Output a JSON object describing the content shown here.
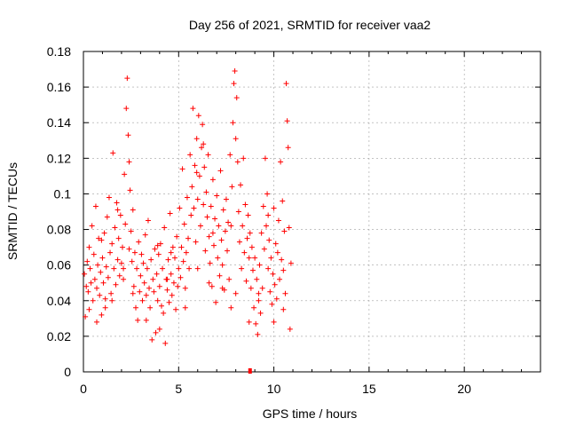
{
  "chart_data": {
    "type": "scatter",
    "title": "Day 256 of 2021, SRMTID for receiver vaa2",
    "xlabel": "GPS time / hours",
    "ylabel": "SRMTID / TECUs",
    "xlim": [
      0,
      24
    ],
    "ylim": [
      0,
      0.18
    ],
    "x_ticks": [
      0,
      5,
      10,
      15,
      20
    ],
    "x_tick_labels": [
      "0",
      "5",
      "10",
      "15",
      "20"
    ],
    "y_ticks": [
      0,
      0.02,
      0.04,
      0.06,
      0.08,
      0.1,
      0.12,
      0.14,
      0.16,
      0.18
    ],
    "y_tick_labels": [
      "0",
      "0.02",
      "0.04",
      "0.06",
      "0.08",
      "0.1",
      "0.12",
      "0.14",
      "0.16",
      "0.18"
    ],
    "grid": true,
    "marker": "+",
    "color": "#ff0000",
    "series": [
      {
        "name": "SRMTID",
        "points": [
          [
            0.05,
            0.055
          ],
          [
            0.1,
            0.031
          ],
          [
            0.15,
            0.048
          ],
          [
            0.2,
            0.062
          ],
          [
            0.25,
            0.045
          ],
          [
            0.3,
            0.07
          ],
          [
            0.35,
            0.058
          ],
          [
            0.4,
            0.05
          ],
          [
            0.45,
            0.082
          ],
          [
            0.5,
            0.04
          ],
          [
            0.55,
            0.066
          ],
          [
            0.6,
            0.052
          ],
          [
            0.65,
            0.093
          ],
          [
            0.7,
            0.047
          ],
          [
            0.75,
            0.06
          ],
          [
            0.8,
            0.075
          ],
          [
            0.85,
            0.043
          ],
          [
            0.9,
            0.056
          ],
          [
            0.95,
            0.032
          ],
          [
            1.0,
            0.064
          ],
          [
            1.05,
            0.05
          ],
          [
            1.1,
            0.078
          ],
          [
            1.15,
            0.041
          ],
          [
            1.2,
            0.059
          ],
          [
            1.25,
            0.087
          ],
          [
            1.3,
            0.053
          ],
          [
            1.35,
            0.098
          ],
          [
            1.4,
            0.067
          ],
          [
            1.45,
            0.044
          ],
          [
            1.5,
            0.072
          ],
          [
            1.55,
            0.123
          ],
          [
            1.6,
            0.058
          ],
          [
            1.65,
            0.081
          ],
          [
            1.7,
            0.049
          ],
          [
            1.75,
            0.095
          ],
          [
            1.8,
            0.063
          ],
          [
            1.85,
            0.075
          ],
          [
            1.9,
            0.054
          ],
          [
            1.95,
            0.088
          ],
          [
            2.0,
            0.061
          ],
          [
            2.05,
            0.07
          ],
          [
            2.1,
            0.052
          ],
          [
            2.15,
            0.111
          ],
          [
            2.2,
            0.083
          ],
          [
            2.25,
            0.148
          ],
          [
            2.3,
            0.165
          ],
          [
            2.35,
            0.133
          ],
          [
            2.4,
            0.118
          ],
          [
            2.45,
            0.102
          ],
          [
            2.5,
            0.079
          ],
          [
            2.55,
            0.062
          ],
          [
            2.6,
            0.091
          ],
          [
            2.65,
            0.048
          ],
          [
            2.7,
            0.067
          ],
          [
            2.75,
            0.036
          ],
          [
            2.8,
            0.058
          ],
          [
            2.85,
            0.029
          ],
          [
            2.9,
            0.073
          ],
          [
            2.95,
            0.045
          ],
          [
            3.0,
            0.054
          ],
          [
            3.05,
            0.066
          ],
          [
            3.1,
            0.04
          ],
          [
            3.15,
            0.061
          ],
          [
            3.2,
            0.05
          ],
          [
            3.25,
            0.077
          ],
          [
            3.3,
            0.043
          ],
          [
            3.35,
            0.058
          ],
          [
            3.4,
            0.085
          ],
          [
            3.45,
            0.047
          ],
          [
            3.5,
            0.036
          ],
          [
            3.55,
            0.063
          ],
          [
            3.6,
            0.018
          ],
          [
            3.65,
            0.052
          ],
          [
            3.7,
            0.045
          ],
          [
            3.75,
            0.069
          ],
          [
            3.8,
            0.022
          ],
          [
            3.85,
            0.055
          ],
          [
            3.9,
            0.04
          ],
          [
            3.95,
            0.066
          ],
          [
            4.0,
            0.048
          ],
          [
            4.05,
            0.072
          ],
          [
            4.1,
            0.037
          ],
          [
            4.15,
            0.058
          ],
          [
            4.2,
            0.033
          ],
          [
            4.25,
            0.081
          ],
          [
            4.3,
            0.016
          ],
          [
            4.35,
            0.052
          ],
          [
            4.4,
            0.046
          ],
          [
            4.45,
            0.063
          ],
          [
            4.5,
            0.039
          ],
          [
            4.55,
            0.089
          ],
          [
            4.6,
            0.055
          ],
          [
            4.65,
            0.043
          ],
          [
            4.7,
            0.07
          ],
          [
            4.75,
            0.05
          ],
          [
            4.8,
            0.064
          ],
          [
            4.85,
            0.035
          ],
          [
            4.9,
            0.076
          ],
          [
            4.95,
            0.048
          ],
          [
            5.0,
            0.058
          ],
          [
            5.05,
            0.092
          ],
          [
            5.1,
            0.053
          ],
          [
            5.15,
            0.07
          ],
          [
            5.2,
            0.114
          ],
          [
            5.25,
            0.062
          ],
          [
            5.3,
            0.083
          ],
          [
            5.35,
            0.047
          ],
          [
            5.4,
            0.067
          ],
          [
            5.45,
            0.098
          ],
          [
            5.5,
            0.075
          ],
          [
            5.55,
            0.058
          ],
          [
            5.6,
            0.122
          ],
          [
            5.65,
            0.088
          ],
          [
            5.7,
            0.104
          ],
          [
            5.75,
            0.148
          ],
          [
            5.8,
            0.092
          ],
          [
            5.85,
            0.116
          ],
          [
            5.9,
            0.073
          ],
          [
            5.95,
            0.131
          ],
          [
            6.0,
            0.097
          ],
          [
            6.05,
            0.144
          ],
          [
            6.1,
            0.11
          ],
          [
            6.15,
            0.082
          ],
          [
            6.2,
            0.126
          ],
          [
            6.25,
            0.139
          ],
          [
            6.3,
            0.094
          ],
          [
            6.35,
            0.115
          ],
          [
            6.4,
            0.068
          ],
          [
            6.45,
            0.101
          ],
          [
            6.5,
            0.087
          ],
          [
            6.55,
            0.122
          ],
          [
            6.6,
            0.076
          ],
          [
            6.65,
            0.061
          ],
          [
            6.7,
            0.093
          ],
          [
            6.75,
            0.048
          ],
          [
            6.8,
            0.108
          ],
          [
            6.85,
            0.071
          ],
          [
            6.9,
            0.086
          ],
          [
            6.95,
            0.039
          ],
          [
            7.0,
            0.099
          ],
          [
            7.05,
            0.064
          ],
          [
            7.1,
            0.082
          ],
          [
            7.15,
            0.054
          ],
          [
            7.2,
            0.113
          ],
          [
            7.25,
            0.074
          ],
          [
            7.3,
            0.06
          ],
          [
            7.35,
            0.091
          ],
          [
            7.4,
            0.046
          ],
          [
            7.45,
            0.079
          ],
          [
            7.5,
            0.097
          ],
          [
            7.55,
            0.068
          ],
          [
            7.6,
            0.084
          ],
          [
            7.65,
            0.052
          ],
          [
            7.7,
            0.122
          ],
          [
            7.75,
            0.036
          ],
          [
            7.8,
            0.104
          ],
          [
            7.85,
            0.14
          ],
          [
            7.9,
            0.162
          ],
          [
            7.95,
            0.169
          ],
          [
            8.0,
            0.131
          ],
          [
            8.05,
            0.154
          ],
          [
            8.1,
            0.118
          ],
          [
            8.15,
            0.09
          ],
          [
            8.2,
            0.073
          ],
          [
            8.25,
            0.105
          ],
          [
            8.3,
            0.058
          ],
          [
            8.35,
            0.082
          ],
          [
            8.4,
            0.12
          ],
          [
            8.45,
            0.067
          ],
          [
            8.5,
            0.094
          ],
          [
            8.55,
            0.051
          ],
          [
            8.6,
            0.075
          ],
          [
            8.65,
            0.088
          ],
          [
            8.7,
            0.064
          ],
          [
            8.75,
            0.078
          ],
          [
            8.8,
            0.047
          ],
          [
            8.85,
            0.07
          ],
          [
            8.9,
            0.057
          ],
          [
            8.95,
            0.036
          ],
          [
            9.0,
            0.064
          ],
          [
            9.05,
            0.027
          ],
          [
            9.1,
            0.052
          ],
          [
            9.15,
            0.021
          ],
          [
            9.2,
            0.044
          ],
          [
            9.25,
            0.06
          ],
          [
            9.3,
            0.033
          ],
          [
            9.35,
            0.078
          ],
          [
            9.4,
            0.047
          ],
          [
            9.45,
            0.093
          ],
          [
            9.5,
            0.069
          ],
          [
            9.55,
            0.12
          ],
          [
            9.6,
            0.082
          ],
          [
            9.65,
            0.1
          ],
          [
            9.7,
            0.058
          ],
          [
            9.75,
            0.074
          ],
          [
            9.8,
            0.045
          ],
          [
            9.85,
            0.064
          ],
          [
            9.9,
            0.038
          ],
          [
            9.95,
            0.055
          ],
          [
            10.0,
            0.092
          ],
          [
            10.05,
            0.049
          ],
          [
            10.1,
            0.072
          ],
          [
            10.15,
            0.041
          ],
          [
            10.2,
            0.067
          ],
          [
            10.25,
            0.085
          ],
          [
            10.3,
            0.052
          ],
          [
            10.35,
            0.118
          ],
          [
            10.4,
            0.063
          ],
          [
            10.45,
            0.096
          ],
          [
            10.5,
            0.057
          ],
          [
            10.55,
            0.079
          ],
          [
            10.6,
            0.044
          ],
          [
            10.65,
            0.162
          ],
          [
            10.7,
            0.141
          ],
          [
            10.75,
            0.126
          ],
          [
            10.8,
            0.081
          ],
          [
            10.85,
            0.024
          ],
          [
            10.9,
            0.061
          ],
          [
            0.3,
            0.035
          ],
          [
            0.7,
            0.028
          ],
          [
            1.15,
            0.036
          ],
          [
            1.5,
            0.04
          ],
          [
            2.1,
            0.058
          ],
          [
            2.6,
            0.044
          ],
          [
            3.3,
            0.029
          ],
          [
            4.0,
            0.024
          ],
          [
            4.4,
            0.052
          ],
          [
            5.35,
            0.036
          ],
          [
            6.0,
            0.058
          ],
          [
            6.6,
            0.05
          ],
          [
            7.3,
            0.047
          ],
          [
            8.0,
            0.044
          ],
          [
            8.7,
            0.028
          ],
          [
            9.2,
            0.04
          ],
          [
            10.0,
            0.028
          ],
          [
            10.5,
            0.035
          ],
          [
            5.95,
            0.112
          ],
          [
            6.3,
            0.128
          ],
          [
            7.75,
            0.082
          ],
          [
            2.4,
            0.069
          ],
          [
            1.8,
            0.091
          ],
          [
            0.95,
            0.074
          ],
          [
            9.7,
            0.088
          ],
          [
            6.8,
            0.078
          ],
          [
            3.9,
            0.071
          ],
          [
            4.6,
            0.067
          ]
        ]
      }
    ]
  }
}
